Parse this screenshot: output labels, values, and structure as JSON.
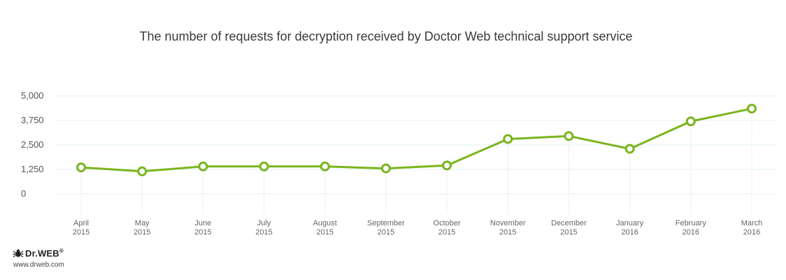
{
  "chart_data": {
    "type": "line",
    "title": "The number of requests for decryption received by Doctor Web technical support service",
    "categories": [
      [
        "April",
        "2015"
      ],
      [
        "May",
        "2015"
      ],
      [
        "June",
        "2015"
      ],
      [
        "July",
        "2015"
      ],
      [
        "August",
        "2015"
      ],
      [
        "September",
        "2015"
      ],
      [
        "October",
        "2015"
      ],
      [
        "November",
        "2015"
      ],
      [
        "December",
        "2015"
      ],
      [
        "January",
        "2016"
      ],
      [
        "February",
        "2016"
      ],
      [
        "March",
        "2016"
      ]
    ],
    "values": [
      1350,
      1150,
      1400,
      1400,
      1400,
      1300,
      1450,
      2800,
      2950,
      2300,
      3700,
      4350
    ],
    "yticks": [
      "5,000",
      "3,750",
      "2,500",
      "1,250",
      "0"
    ],
    "ylim": [
      0,
      5000
    ],
    "grid": true,
    "colors": {
      "line": "#7ab51d",
      "marker_fill": "#ffffff",
      "grid": "#e3f2f8",
      "guide": "#c8c8c8"
    }
  },
  "brand": {
    "name": "Dr.WEB",
    "registered": "®",
    "url": "www.drweb.com",
    "icon": "spider-icon"
  }
}
